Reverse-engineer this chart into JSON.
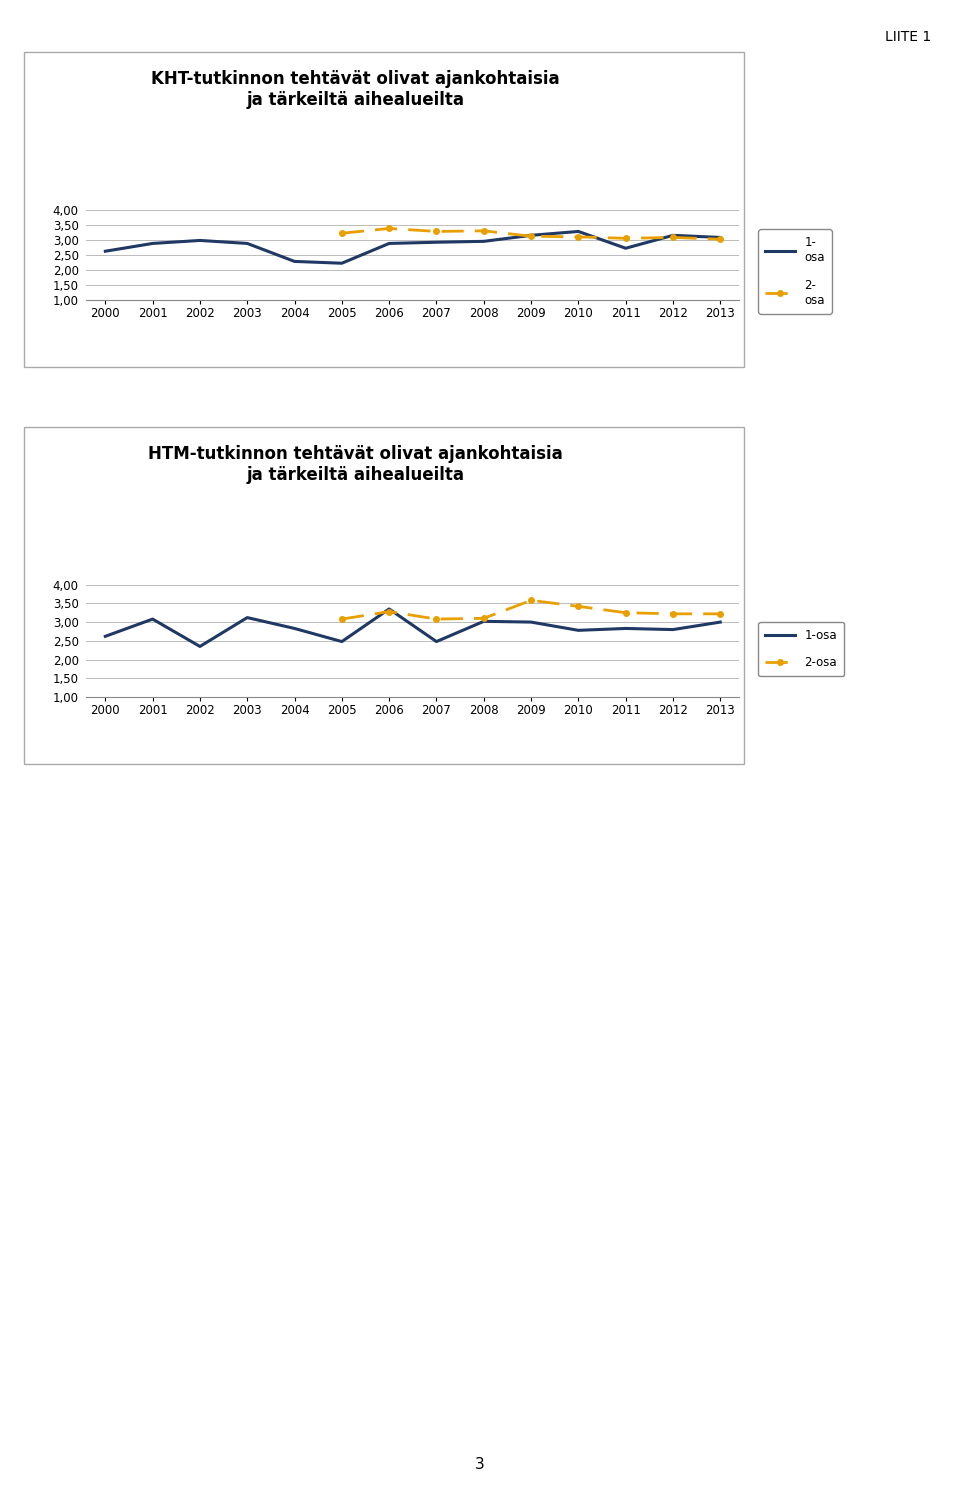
{
  "years": [
    2000,
    2001,
    2002,
    2003,
    2004,
    2005,
    2006,
    2007,
    2008,
    2009,
    2010,
    2011,
    2012,
    2013
  ],
  "kht_1osa": [
    2.62,
    2.88,
    2.98,
    2.88,
    2.28,
    2.22,
    2.88,
    2.92,
    2.95,
    3.15,
    3.28,
    2.72,
    3.15,
    3.08
  ],
  "kht_2osa": [
    null,
    null,
    null,
    null,
    null,
    3.22,
    3.38,
    3.28,
    3.3,
    3.12,
    3.1,
    3.05,
    3.08,
    3.02
  ],
  "htm_1osa": [
    2.62,
    3.08,
    2.35,
    3.12,
    2.83,
    2.48,
    3.35,
    2.48,
    3.02,
    3.0,
    2.78,
    2.83,
    2.8,
    3.0
  ],
  "htm_2osa": [
    null,
    null,
    null,
    null,
    null,
    3.08,
    3.28,
    3.08,
    3.1,
    3.58,
    3.42,
    3.25,
    3.22,
    3.22
  ],
  "kht_title": "KHT-tutkinnon tehtävät olivat ajankohtaisia\nja tärkeiltä aihealueilta",
  "htm_title": "HTM-tutkinnon tehtävät olivat ajankohtaisia\nja tärkeiltä aihealueilta",
  "line1_color": "#1F3864",
  "line2_color": "#E8A000",
  "ylim": [
    1.0,
    4.0
  ],
  "yticks": [
    1.0,
    1.5,
    2.0,
    2.5,
    3.0,
    3.5,
    4.0
  ],
  "page_label": "LIITE 1",
  "page_number": "3",
  "bg_color": "#FFFFFF",
  "grid_color": "#BBBBBB",
  "box_color": "#DDDDDD"
}
